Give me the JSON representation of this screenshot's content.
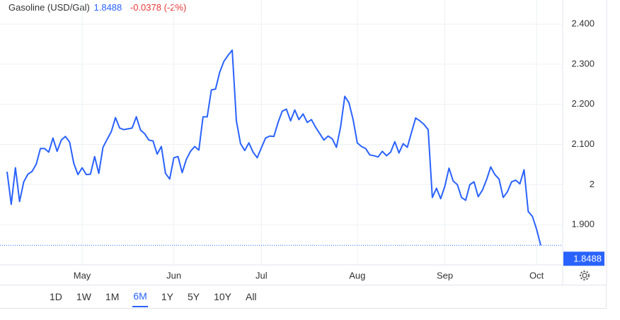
{
  "header": {
    "title": "Gasoline (USD/Gal)",
    "change": "-0.0378 (-2%)"
  },
  "ranges": [
    "1D",
    "1W",
    "1M",
    "6M",
    "1Y",
    "5Y",
    "10Y",
    "All"
  ],
  "selected_range": "6M",
  "chart_data": {
    "type": "line",
    "last_price": 1.8488,
    "categories": [
      null,
      null,
      null,
      null,
      null,
      null,
      null,
      null,
      null,
      null,
      null,
      null,
      null,
      null,
      null,
      null,
      null,
      null,
      "May",
      null,
      null,
      null,
      null,
      null,
      null,
      null,
      null,
      null,
      null,
      null,
      null,
      null,
      null,
      null,
      null,
      null,
      null,
      null,
      null,
      null,
      "Jun",
      null,
      null,
      null,
      null,
      null,
      null,
      null,
      null,
      null,
      null,
      null,
      null,
      null,
      null,
      null,
      null,
      null,
      null,
      null,
      null,
      "Jul",
      null,
      null,
      null,
      null,
      null,
      null,
      null,
      null,
      null,
      null,
      null,
      null,
      null,
      null,
      null,
      null,
      null,
      null,
      null,
      null,
      null,
      null,
      "Aug",
      null,
      null,
      null,
      null,
      null,
      null,
      null,
      null,
      null,
      null,
      null,
      null,
      null,
      null,
      null,
      null,
      null,
      null,
      null,
      null,
      "Sep",
      null,
      null,
      null,
      null,
      null,
      null,
      null,
      null,
      null,
      null,
      null,
      null,
      null,
      null,
      null,
      null,
      null,
      null,
      null,
      null,
      null,
      "Oct",
      null
    ],
    "series": [
      {
        "color": "#2962ff",
        "values": [
          2.032,
          1.951,
          2.042,
          1.958,
          2.007,
          2.026,
          2.033,
          2.051,
          2.09,
          2.09,
          2.081,
          2.116,
          2.083,
          2.111,
          2.12,
          2.106,
          2.053,
          2.025,
          2.042,
          2.025,
          2.026,
          2.07,
          2.028,
          2.093,
          2.113,
          2.132,
          2.167,
          2.141,
          2.137,
          2.139,
          2.141,
          2.169,
          2.136,
          2.127,
          2.111,
          2.109,
          2.076,
          2.095,
          2.028,
          2.014,
          2.067,
          2.07,
          2.03,
          2.063,
          2.083,
          2.095,
          2.086,
          2.169,
          2.169,
          2.236,
          2.238,
          2.28,
          2.307,
          2.322,
          2.335,
          2.159,
          2.102,
          2.085,
          2.104,
          2.081,
          2.067,
          2.092,
          2.116,
          2.121,
          2.12,
          2.155,
          2.183,
          2.188,
          2.159,
          2.186,
          2.162,
          2.176,
          2.155,
          2.162,
          2.143,
          2.127,
          2.111,
          2.121,
          2.114,
          2.093,
          2.144,
          2.22,
          2.204,
          2.162,
          2.104,
          2.095,
          2.09,
          2.074,
          2.072,
          2.069,
          2.083,
          2.072,
          2.081,
          2.107,
          2.079,
          2.102,
          2.093,
          2.13,
          2.166,
          2.159,
          2.15,
          2.137,
          1.968,
          1.991,
          1.965,
          1.996,
          2.041,
          2.009,
          2.0,
          1.968,
          1.961,
          2.0,
          2.007,
          1.97,
          1.986,
          2.012,
          2.044,
          2.025,
          2.014,
          1.968,
          1.982,
          2.007,
          2.011,
          2.002,
          2.037,
          1.933,
          1.921,
          1.889,
          1.8488
        ]
      }
    ],
    "ylim": [
      1.8,
      2.46
    ],
    "yticks": [
      {
        "value": 1.9,
        "label": "1.900"
      },
      2,
      {
        "value": 2.1,
        "label": "2.100"
      },
      {
        "value": 2.2,
        "label": "2.200"
      },
      {
        "value": 2.3,
        "label": "2.300"
      },
      {
        "value": 2.4,
        "label": "2.400"
      }
    ],
    "grid": true
  }
}
